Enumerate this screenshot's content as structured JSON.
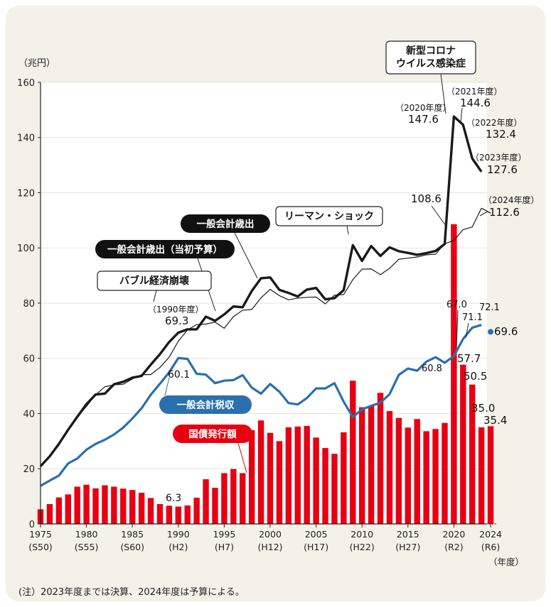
{
  "chart_data": {
    "type": "bar+line",
    "ylabel": "（兆円）",
    "xlabel": "（年度）",
    "ylim": [
      0,
      160
    ],
    "xlim": [
      1975,
      2024
    ],
    "y_ticks": [
      "0",
      "20",
      "40",
      "60",
      "80",
      "100",
      "120",
      "140",
      "160"
    ],
    "x_ticks": [
      {
        "year": "1975",
        "era": "(S50)"
      },
      {
        "year": "1980",
        "era": "(S55)"
      },
      {
        "year": "1985",
        "era": "(S60)"
      },
      {
        "year": "1990",
        "era": "(H2)"
      },
      {
        "year": "1995",
        "era": "(H7)"
      },
      {
        "year": "2000",
        "era": "(H12)"
      },
      {
        "year": "2005",
        "era": "(H17)"
      },
      {
        "year": "2010",
        "era": "(H22)"
      },
      {
        "year": "2015",
        "era": "(H27)"
      },
      {
        "year": "2020",
        "era": "(R2)"
      },
      {
        "year": "2024",
        "era": "(R6)"
      }
    ],
    "years": [
      1975,
      1976,
      1977,
      1978,
      1979,
      1980,
      1981,
      1982,
      1983,
      1984,
      1985,
      1986,
      1987,
      1988,
      1989,
      1990,
      1991,
      1992,
      1993,
      1994,
      1995,
      1996,
      1997,
      1998,
      1999,
      2000,
      2001,
      2002,
      2003,
      2004,
      2005,
      2006,
      2007,
      2008,
      2009,
      2010,
      2011,
      2012,
      2013,
      2014,
      2015,
      2016,
      2017,
      2018,
      2019,
      2020,
      2021,
      2022,
      2023
    ],
    "series": [
      {
        "name": "一般会計歳出",
        "values": [
          20.9,
          24.5,
          29.0,
          34.1,
          38.8,
          43.4,
          46.9,
          47.2,
          50.6,
          51.5,
          53.0,
          53.6,
          57.7,
          61.5,
          65.9,
          69.3,
          70.5,
          70.5,
          75.1,
          73.6,
          75.9,
          78.8,
          78.5,
          84.4,
          89.0,
          89.3,
          84.8,
          83.7,
          82.4,
          84.9,
          85.5,
          81.4,
          81.8,
          84.7,
          101.0,
          95.3,
          100.7,
          97.1,
          100.2,
          98.8,
          98.2,
          97.5,
          98.1,
          98.9,
          101.4,
          147.6,
          144.6,
          132.4,
          127.6
        ]
      },
      {
        "name": "一般会計歳出（当初予算）",
        "values": [
          21.3,
          24.5,
          28.5,
          34.3,
          38.6,
          42.6,
          46.8,
          49.7,
          50.4,
          50.6,
          52.5,
          54.1,
          54.1,
          56.7,
          60.4,
          66.2,
          70.3,
          72.2,
          72.4,
          73.1,
          70.9,
          75.1,
          77.4,
          77.7,
          81.9,
          85.0,
          82.7,
          81.2,
          81.8,
          82.1,
          82.2,
          79.7,
          82.9,
          83.1,
          88.5,
          92.3,
          92.4,
          90.3,
          92.6,
          95.9,
          96.3,
          96.7,
          97.5,
          97.7,
          101.5,
          102.7,
          106.6,
          107.6,
          114.4
        ]
      },
      {
        "name": "一般会計税収",
        "values": [
          13.8,
          15.7,
          17.5,
          21.9,
          23.7,
          26.9,
          29.0,
          30.5,
          32.4,
          34.9,
          38.2,
          41.9,
          46.8,
          50.8,
          54.9,
          60.1,
          59.8,
          54.4,
          54.1,
          51.0,
          51.9,
          52.1,
          53.9,
          49.4,
          47.2,
          50.7,
          47.9,
          43.8,
          43.3,
          45.6,
          49.1,
          49.1,
          51.0,
          44.3,
          38.7,
          41.5,
          42.8,
          43.9,
          47.0,
          54.0,
          56.3,
          55.5,
          58.8,
          60.4,
          58.4,
          60.8,
          67.0,
          71.1,
          72.1
        ]
      },
      {
        "name": "国債発行額",
        "values": [
          5.3,
          7.2,
          9.6,
          10.7,
          13.5,
          14.2,
          12.9,
          14.0,
          13.5,
          12.8,
          12.3,
          11.3,
          9.4,
          7.2,
          6.6,
          6.3,
          6.7,
          9.5,
          16.2,
          13.1,
          18.4,
          19.9,
          18.4,
          34.0,
          37.5,
          33.0,
          30.0,
          35.0,
          35.3,
          35.5,
          31.3,
          27.5,
          25.4,
          33.2,
          51.9,
          42.3,
          42.8,
          47.5,
          40.9,
          38.4,
          34.9,
          38.0,
          33.6,
          34.4,
          36.6,
          108.6,
          57.7,
          50.5,
          35.0
        ]
      }
    ],
    "budget_2024": {
      "expenditure": 112.6,
      "tax_revenue": 69.6,
      "bonds": 35.4
    },
    "labels": {
      "expenditure": "一般会計歳出",
      "expenditure_initial": "一般会計歳出（当初予算）",
      "tax": "一般会計税収",
      "bonds": "国債発行額",
      "bubble": "バブル経済崩壊",
      "lehman": "リーマン・ショック",
      "covid_line1": "新型コロナ",
      "covid_line2": "ウイルス感染症"
    },
    "annotations": {
      "y1990": "（1990年度）",
      "v1990": "69.3",
      "tax1990": "60.1",
      "bond1990": "6.3",
      "y2020": "（2020年度）",
      "v2020": "147.6",
      "y2021": "（2021年度）",
      "v2021": "144.6",
      "y2022": "（2022年度）",
      "v2022": "132.4",
      "y2023": "（2023年度）",
      "v2023": "127.6",
      "y2024": "（2024年度）",
      "v2024": "112.6",
      "b2020": "108.6",
      "b2021": "57.7",
      "b2022": "50.5",
      "b2023": "35.0",
      "b2024": "35.4",
      "t2020": "60.8",
      "t2021": "67.0",
      "t2022": "71.1",
      "t2023": "72.1",
      "t2024": "69.6"
    },
    "colors": {
      "expenditure": "#1a1a1a",
      "initial": "#1a1a1a",
      "tax": "#2a6fae",
      "bonds": "#e60012",
      "fill": "#f8d5bf",
      "background": "#f3f1e8"
    },
    "note": "(注）2023年度までは決算、2024年度は予算による。"
  }
}
